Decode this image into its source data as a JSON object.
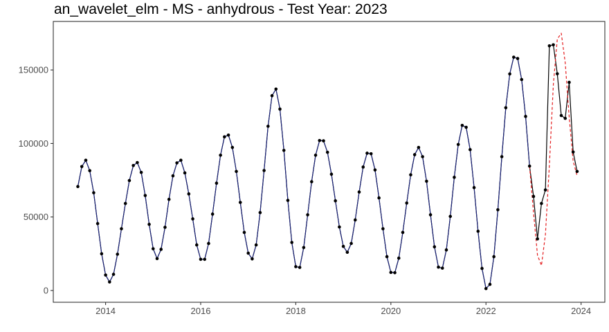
{
  "chart_data": {
    "type": "line",
    "title": "an_wavelet_elm - MS - anhydrous - Test Year: 2023",
    "xlabel": "",
    "ylabel": "",
    "x_ticks": [
      {
        "value": 2014,
        "label": "2014"
      },
      {
        "value": 2016,
        "label": "2016"
      },
      {
        "value": 2018,
        "label": "2018"
      },
      {
        "value": 2020,
        "label": "2020"
      },
      {
        "value": 2022,
        "label": "2022"
      },
      {
        "value": 2024,
        "label": "2024"
      }
    ],
    "y_ticks": [
      {
        "value": 0,
        "label": "0"
      },
      {
        "value": 50000,
        "label": "50000"
      },
      {
        "value": 100000,
        "label": "100000"
      },
      {
        "value": 150000,
        "label": "150000"
      }
    ],
    "xlim": [
      2012.9,
      2024.5
    ],
    "ylim": [
      -8000,
      183000
    ],
    "grid": false,
    "legend": "none",
    "x_start": {
      "year": 2013,
      "month": 6
    },
    "series": [
      {
        "role": "actual",
        "color": "#000000",
        "style": "solid-with-points",
        "values": [
          70700,
          84300,
          88600,
          81500,
          66500,
          45500,
          25000,
          10500,
          5800,
          11000,
          24700,
          42000,
          59200,
          74800,
          85000,
          87000,
          80300,
          64600,
          45000,
          28400,
          21700,
          28000,
          43000,
          62000,
          78000,
          86800,
          88600,
          80000,
          65700,
          48700,
          31000,
          21200,
          21200,
          32000,
          52000,
          73000,
          92000,
          104500,
          105700,
          97300,
          81000,
          59900,
          39500,
          25400,
          21500,
          31000,
          53000,
          81600,
          111700,
          132500,
          137000,
          123400,
          95300,
          61300,
          32700,
          16200,
          15700,
          29200,
          51500,
          74000,
          92000,
          102000,
          101800,
          94000,
          79100,
          61000,
          43200,
          30000,
          26000,
          32000,
          48000,
          67000,
          84000,
          93400,
          93000,
          82000,
          63000,
          42000,
          23000,
          12300,
          12100,
          22000,
          39500,
          59500,
          78700,
          92400,
          97300,
          91000,
          74300,
          51500,
          29700,
          15900,
          15200,
          27600,
          50400,
          77000,
          99300,
          112300,
          111000,
          95800,
          70000,
          40300,
          15000,
          1300,
          4200,
          23000,
          54900,
          91000,
          124300,
          147300,
          158700,
          157800,
          143500,
          118400,
          84600,
          64000,
          35100,
          59200,
          68400,
          166400,
          167100,
          147400,
          119000,
          117100,
          141600,
          94200,
          81000
        ]
      },
      {
        "role": "fitted",
        "color": "#1a237e",
        "style": "solid",
        "values": [
          70700,
          84300,
          88600,
          81500,
          66500,
          45500,
          25000,
          10500,
          5800,
          11000,
          24700,
          42000,
          59200,
          74800,
          85000,
          87000,
          80300,
          64600,
          45000,
          28400,
          21700,
          28000,
          43000,
          62000,
          78000,
          86800,
          88600,
          80000,
          65700,
          48700,
          31000,
          21200,
          21200,
          32000,
          52000,
          73000,
          92000,
          104500,
          105700,
          97300,
          81000,
          59900,
          39500,
          25400,
          21500,
          31000,
          53000,
          81600,
          111700,
          132500,
          137000,
          123400,
          95300,
          61300,
          32700,
          16200,
          15700,
          29200,
          51500,
          74000,
          92000,
          102000,
          101800,
          94000,
          79100,
          61000,
          43200,
          30000,
          26000,
          32000,
          48000,
          67000,
          84000,
          93400,
          93000,
          82000,
          63000,
          42000,
          23000,
          12300,
          12100,
          22000,
          39500,
          59500,
          78700,
          92400,
          97300,
          91000,
          74300,
          51500,
          29700,
          15900,
          15200,
          27600,
          50400,
          77000,
          99300,
          112300,
          111000,
          95800,
          70000,
          40300,
          15000,
          1300,
          4200,
          23000,
          54900,
          91000,
          124300,
          147300,
          158700,
          157800,
          143500,
          118400,
          84600
        ]
      },
      {
        "role": "forecast",
        "color": "#e41a1c",
        "style": "dashed",
        "x_start": {
          "year": 2022,
          "month": 12
        },
        "values": [
          84600,
          53000,
          24000,
          17000,
          38000,
          85000,
          140000,
          171000,
          175000,
          155000,
          118000,
          88000,
          78000
        ]
      }
    ]
  }
}
